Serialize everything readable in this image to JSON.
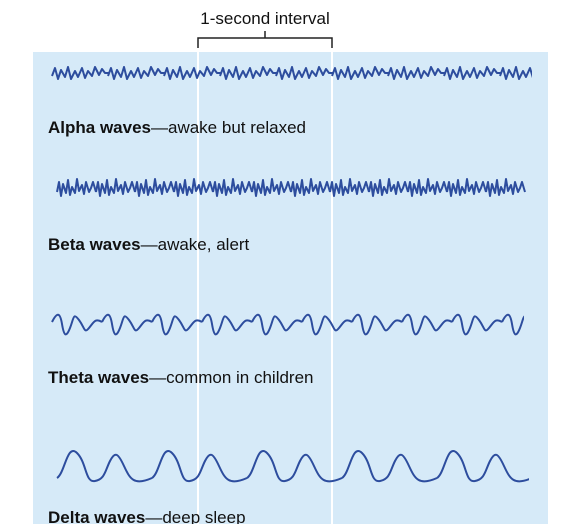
{
  "interval_label": "1-second interval",
  "waves": [
    {
      "name": "Alpha waves",
      "description": "—awake but relaxed"
    },
    {
      "name": "Beta waves",
      "description": "—awake, alert"
    },
    {
      "name": "Theta waves",
      "description": "—common in children"
    },
    {
      "name": "Delta waves",
      "description": "—deep sleep"
    }
  ]
}
